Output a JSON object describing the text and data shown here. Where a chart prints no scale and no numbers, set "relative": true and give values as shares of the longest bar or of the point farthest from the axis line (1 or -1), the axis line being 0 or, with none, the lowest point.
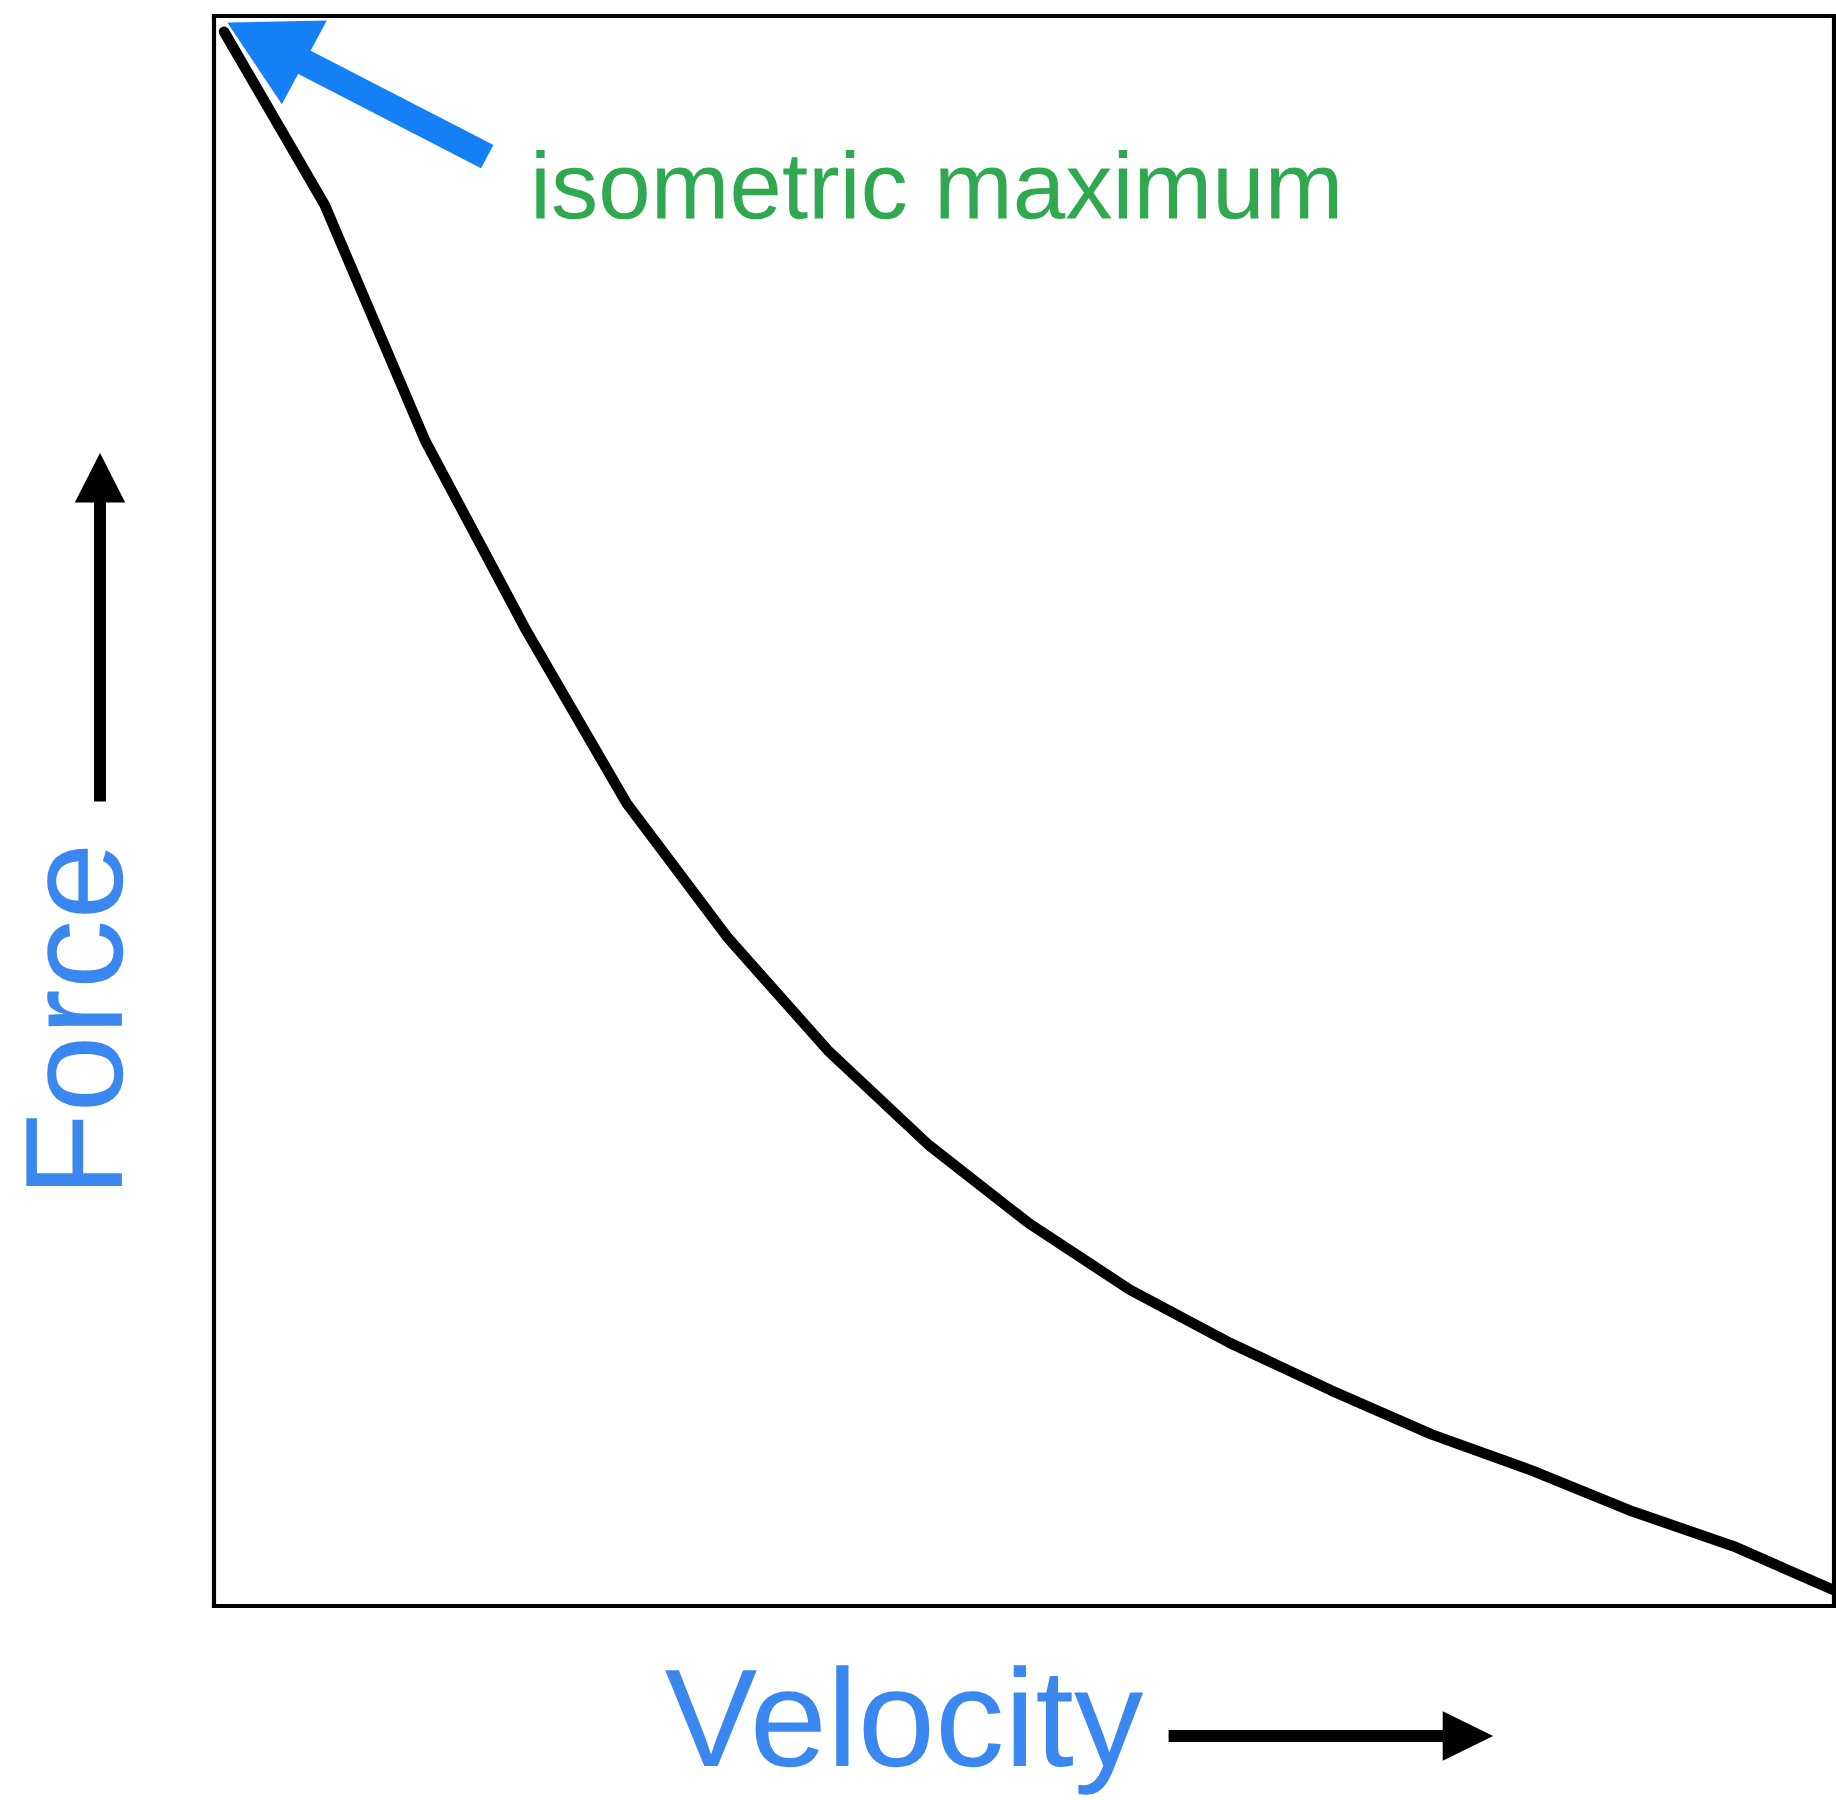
{
  "chart_data": {
    "type": "line",
    "relative": true,
    "xlabel": "Velocity",
    "ylabel": "Force",
    "categories": [
      null,
      null,
      null,
      null,
      null,
      null,
      null,
      null,
      null,
      null,
      null,
      null,
      null,
      null,
      null,
      null,
      null
    ],
    "series": [
      {
        "color": "#000000",
        "values": [
          1.0,
          0.89,
          0.74,
          0.62,
          0.51,
          0.425,
          0.353,
          0.293,
          0.243,
          0.201,
          0.167,
          0.137,
          0.109,
          0.086,
          0.06,
          0.038,
          0.01
        ]
      }
    ],
    "annotations": [
      "isometric maximum"
    ]
  }
}
